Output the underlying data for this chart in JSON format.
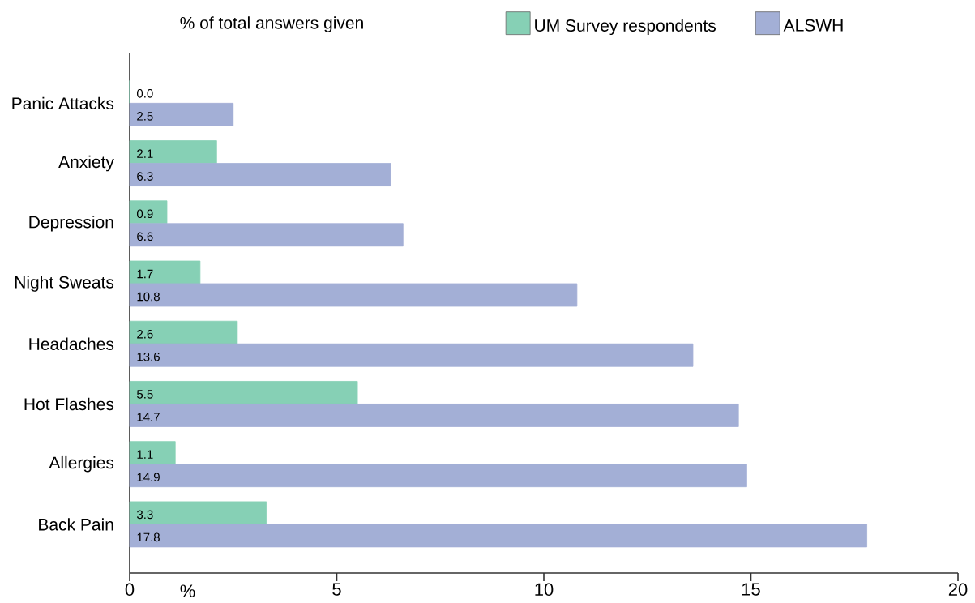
{
  "chart_data": {
    "type": "bar",
    "orientation": "horizontal",
    "legend_title": "% of total answers given",
    "xlabel": "%",
    "categories": [
      "Panic Attacks",
      "Anxiety",
      "Depression",
      "Night Sweats",
      "Headaches",
      "Hot Flashes",
      "Allergies",
      "Back Pain"
    ],
    "series": [
      {
        "name": "UM Survey respondents",
        "color": "#86d0b5",
        "values": [
          0.0,
          2.1,
          0.9,
          1.7,
          2.6,
          5.5,
          1.1,
          3.3
        ],
        "value_labels": [
          "0.0",
          "2.1",
          "0.9",
          "1.7",
          "2.6",
          "5.5",
          "1.1",
          "3.3"
        ]
      },
      {
        "name": "ALSWH",
        "color": "#a3afd6",
        "values": [
          2.5,
          6.3,
          6.6,
          10.8,
          13.6,
          14.7,
          14.9,
          17.8
        ],
        "value_labels": [
          "2.5",
          "6.3",
          "6.6",
          "10.8",
          "13.6",
          "14.7",
          "14.9",
          "17.8"
        ]
      }
    ],
    "xlim": [
      0,
      20
    ],
    "xticks": [
      0,
      5,
      10,
      15,
      20
    ],
    "legend": "top",
    "grid": false
  }
}
